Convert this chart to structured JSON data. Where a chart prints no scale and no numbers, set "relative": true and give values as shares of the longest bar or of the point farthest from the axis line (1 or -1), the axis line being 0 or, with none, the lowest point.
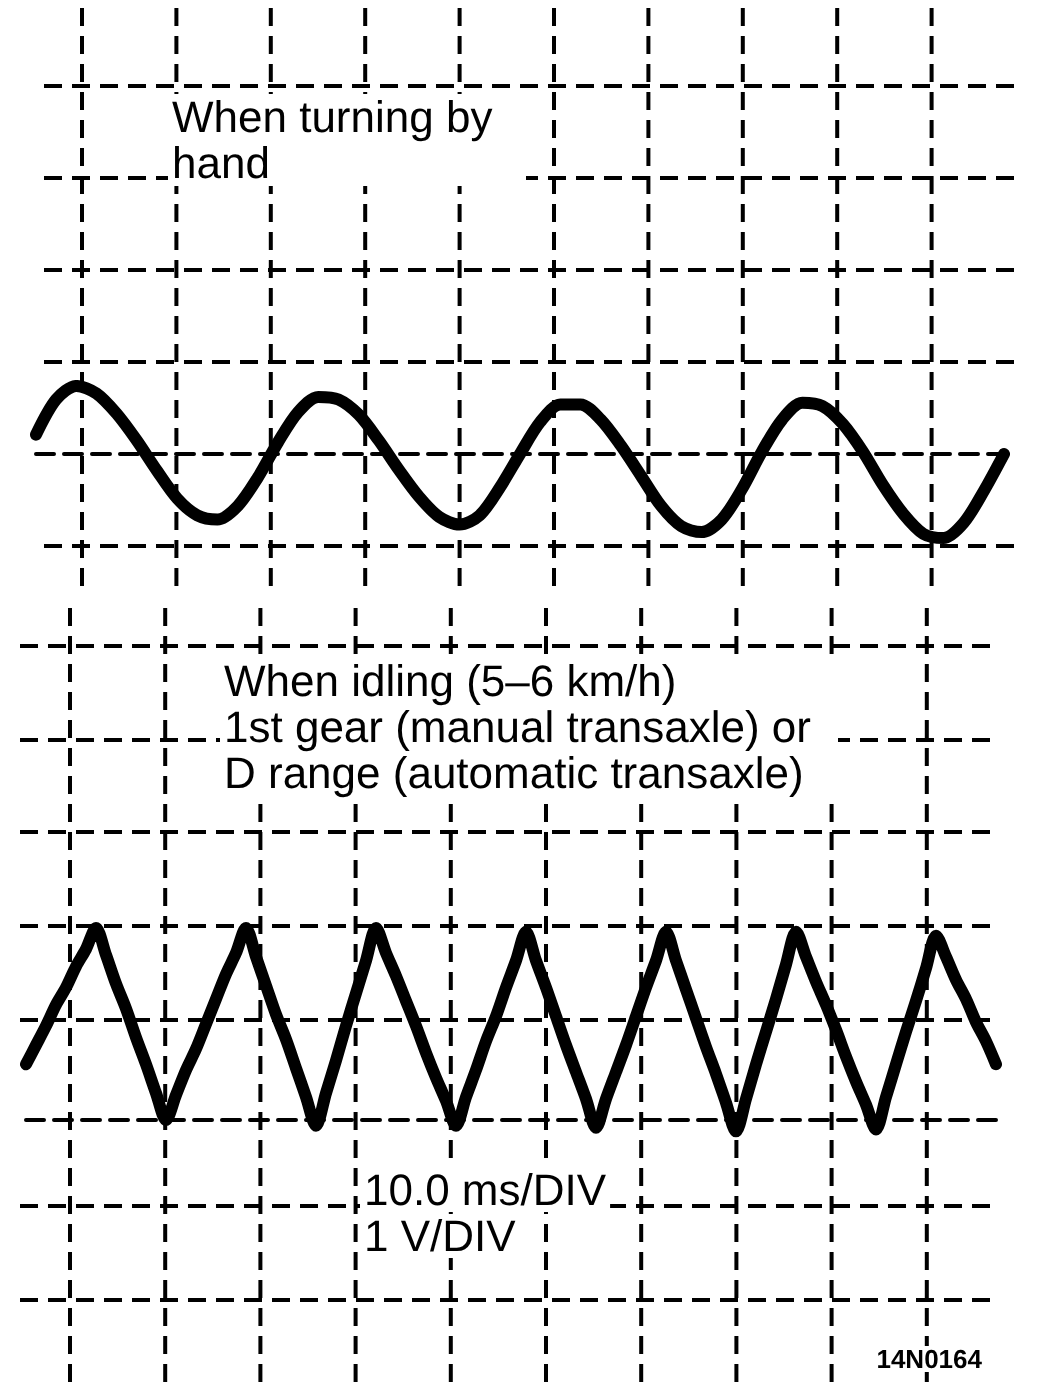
{
  "chart_data": [
    {
      "type": "line",
      "title": "When turning by hand",
      "relative": true,
      "grid": true,
      "color": "#000000",
      "categories": [
        null,
        null,
        null,
        null,
        null,
        null,
        null,
        null,
        null,
        null,
        null,
        null,
        null,
        null,
        null,
        null,
        null,
        null,
        null,
        null,
        null,
        null,
        null,
        null,
        null,
        null,
        null,
        null,
        null,
        null,
        null,
        null,
        null,
        null,
        null,
        null,
        null,
        null,
        null,
        null,
        null,
        null,
        null,
        null,
        null,
        null,
        null,
        null,
        null
      ],
      "values": [
        0.23,
        0.65,
        0.81,
        0.72,
        0.48,
        0.16,
        -0.2,
        -0.53,
        -0.73,
        -0.78,
        -0.62,
        -0.28,
        0.14,
        0.5,
        0.68,
        0.65,
        0.47,
        0.16,
        -0.19,
        -0.51,
        -0.75,
        -0.84,
        -0.73,
        -0.4,
        0.0,
        0.38,
        0.59,
        0.59,
        0.41,
        0.1,
        -0.26,
        -0.62,
        -0.86,
        -0.93,
        -0.78,
        -0.42,
        0.03,
        0.41,
        0.61,
        0.57,
        0.36,
        0.03,
        -0.37,
        -0.71,
        -0.95,
        -1.0,
        -0.82,
        -0.44,
        0.0
      ]
    },
    {
      "type": "line",
      "title": "When idling (5–6 km/h)",
      "subtitle": "1st gear (manual transaxle) or D range (automatic transaxle)",
      "relative": true,
      "grid": true,
      "color": "#000000",
      "annotations": [
        "10.0 ms/DIV",
        "1 V/DIV",
        "14N0164"
      ],
      "categories": [
        null,
        null,
        null,
        null,
        null,
        null,
        null,
        null,
        null,
        null,
        null,
        null,
        null,
        null,
        null,
        null,
        null,
        null,
        null,
        null,
        null,
        null,
        null,
        null,
        null,
        null,
        null,
        null,
        null,
        null,
        null,
        null,
        null,
        null,
        null,
        null,
        null,
        null,
        null,
        null,
        null,
        null,
        null,
        null,
        null,
        null,
        null,
        null,
        null,
        null,
        null,
        null,
        null,
        null,
        null,
        null,
        null,
        null,
        null,
        null,
        null,
        null,
        null,
        null,
        null,
        null,
        null,
        null,
        null,
        null,
        null,
        null,
        null,
        null,
        null,
        null,
        null,
        null,
        null,
        null,
        null,
        null,
        null,
        null,
        null,
        null,
        null,
        null,
        null,
        null,
        null,
        null,
        null,
        null,
        null,
        null,
        null,
        null
      ],
      "values": [
        0.29,
        0.39,
        0.49,
        0.6,
        0.69,
        0.8,
        0.89,
        1.0,
        0.86,
        0.71,
        0.58,
        0.43,
        0.29,
        0.14,
        0.0,
        0.13,
        0.26,
        0.37,
        0.5,
        0.63,
        0.76,
        0.87,
        1.0,
        0.85,
        0.7,
        0.55,
        0.42,
        0.27,
        0.12,
        -0.03,
        0.14,
        0.31,
        0.49,
        0.66,
        0.83,
        1.0,
        0.87,
        0.75,
        0.62,
        0.49,
        0.35,
        0.22,
        0.1,
        -0.03,
        0.12,
        0.26,
        0.41,
        0.54,
        0.69,
        0.83,
        0.98,
        0.83,
        0.69,
        0.54,
        0.39,
        0.25,
        0.11,
        -0.04,
        0.11,
        0.25,
        0.39,
        0.54,
        0.69,
        0.83,
        0.98,
        0.83,
        0.68,
        0.53,
        0.38,
        0.24,
        0.09,
        -0.06,
        0.11,
        0.29,
        0.46,
        0.63,
        0.81,
        0.98,
        0.85,
        0.72,
        0.6,
        0.47,
        0.33,
        0.2,
        0.08,
        -0.05,
        0.12,
        0.29,
        0.46,
        0.62,
        0.79,
        0.96,
        0.85,
        0.73,
        0.63,
        0.51,
        0.41,
        0.29
      ]
    }
  ]
}
